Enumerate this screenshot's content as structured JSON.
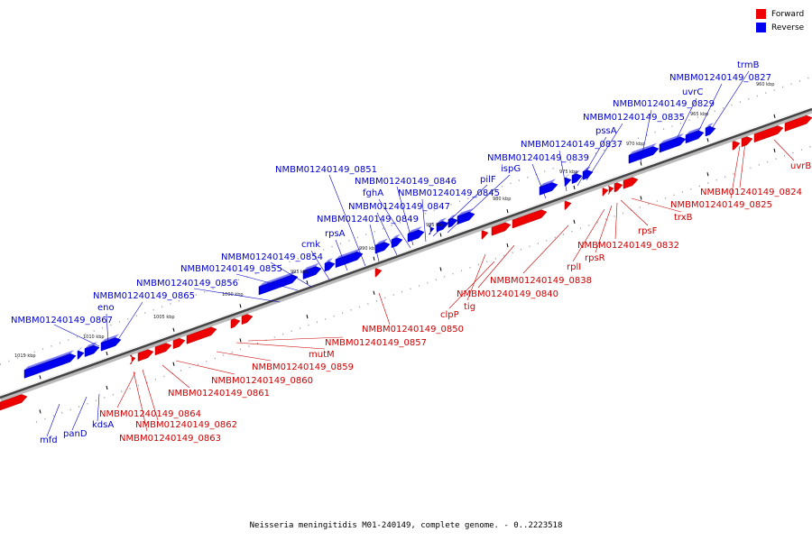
{
  "caption": "Neisseria meningitidis M01-240149, complete genome. - 0..2223518",
  "legend": {
    "forward": {
      "label": "Forward",
      "color": "#ee0000"
    },
    "reverse": {
      "label": "Reverse",
      "color": "#0000ee"
    }
  },
  "axis": {
    "ticks": [
      "1015 kbp",
      "1010 kbp",
      "1005 kbp",
      "1000 kbp",
      "995 kbp",
      "990 kbp",
      "985 kbp",
      "980 kbp",
      "975 kbp",
      "970 kbp",
      "965 kbp",
      "960 kbp"
    ]
  },
  "genes": {
    "reverse_labels": [
      "mfd",
      "panD",
      "kdsA",
      "NMBM01240149_0867",
      "eno",
      "NMBM01240149_0865",
      "NMBM01240149_0856",
      "NMBM01240149_0855",
      "NMBM01240149_0854",
      "cmk",
      "rpsA",
      "NMBM01240149_0849",
      "NMBM01240149_0847",
      "fghA",
      "NMBM01240149_0845",
      "NMBM01240149_0846",
      "NMBM01240149_0851",
      "pilF",
      "ispG",
      "NMBM01240149_0839",
      "NMBM01240149_0837",
      "pssA",
      "NMBM01240149_0835",
      "NMBM01240149_0829",
      "uvrC",
      "NMBM01240149_0827",
      "trmB"
    ],
    "forward_labels": [
      "NMBM01240149_0863",
      "NMBM01240149_0862",
      "NMBM01240149_0864",
      "NMBM01240149_0861",
      "NMBM01240149_0860",
      "NMBM01240149_0859",
      "mutM",
      "NMBM01240149_0857",
      "NMBM01240149_0850",
      "tig",
      "clpP",
      "NMBM01240149_0840",
      "NMBM01240149_0838",
      "rplI",
      "rpsR",
      "NMBM01240149_0832",
      "rpsF",
      "trxB",
      "NMBM01240149_0825",
      "NMBM01240149_0824",
      "uvrB"
    ]
  }
}
